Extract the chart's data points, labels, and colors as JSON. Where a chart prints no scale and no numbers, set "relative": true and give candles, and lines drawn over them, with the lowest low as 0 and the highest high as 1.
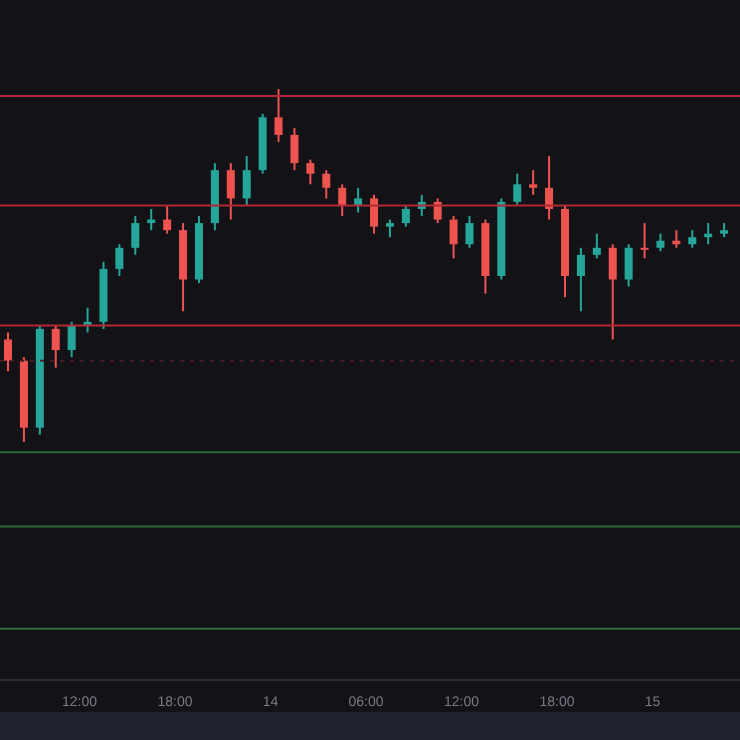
{
  "chart_data": {
    "type": "candlestick",
    "relative": true,
    "x": [
      "--01-13T07:30",
      "--01-13T08:30",
      "--01-13T09:30",
      "--01-13T10:30",
      "--01-13T11:30",
      "--01-13T12:30",
      "--01-13T13:30",
      "--01-13T14:30",
      "--01-13T15:30",
      "--01-13T16:30",
      "--01-13T17:30",
      "--01-13T18:30",
      "--01-13T19:30",
      "--01-13T20:30",
      "--01-13T21:30",
      "--01-13T22:30",
      "--01-13T23:30",
      "--01-14T00:30",
      "--01-14T01:30",
      "--01-14T02:30",
      "--01-14T03:30",
      "--01-14T04:30",
      "--01-14T05:30",
      "--01-14T06:30",
      "--01-14T07:30",
      "--01-14T08:30",
      "--01-14T09:30",
      "--01-14T10:30",
      "--01-14T11:30",
      "--01-14T12:30",
      "--01-14T13:30",
      "--01-14T14:30",
      "--01-14T15:30",
      "--01-14T16:30",
      "--01-14T17:30",
      "--01-14T18:30",
      "--01-14T19:30",
      "--01-14T20:30",
      "--01-14T21:30",
      "--01-14T22:30",
      "--01-14T23:30",
      "--01-15T00:30",
      "--01-15T01:30",
      "--01-15T02:30",
      "--01-15T03:30",
      "--01-15T04:30"
    ],
    "ohlc": [
      [
        0.29,
        0.31,
        0.2,
        0.23
      ],
      [
        0.23,
        0.24,
        0,
        0.04
      ],
      [
        0.04,
        0.33,
        0.02,
        0.32
      ],
      [
        0.32,
        0.33,
        0.21,
        0.26
      ],
      [
        0.26,
        0.34,
        0.24,
        0.33
      ],
      [
        0.33,
        0.38,
        0.31,
        0.34
      ],
      [
        0.34,
        0.51,
        0.32,
        0.49
      ],
      [
        0.49,
        0.56,
        0.47,
        0.55
      ],
      [
        0.55,
        0.64,
        0.53,
        0.62
      ],
      [
        0.62,
        0.66,
        0.6,
        0.63
      ],
      [
        0.63,
        0.67,
        0.59,
        0.6
      ],
      [
        0.6,
        0.62,
        0.37,
        0.46
      ],
      [
        0.46,
        0.64,
        0.45,
        0.62
      ],
      [
        0.62,
        0.79,
        0.6,
        0.77
      ],
      [
        0.77,
        0.79,
        0.63,
        0.69
      ],
      [
        0.69,
        0.81,
        0.67,
        0.77
      ],
      [
        0.77,
        0.93,
        0.76,
        0.92
      ],
      [
        0.92,
        1,
        0.85,
        0.87
      ],
      [
        0.87,
        0.89,
        0.77,
        0.79
      ],
      [
        0.79,
        0.8,
        0.73,
        0.76
      ],
      [
        0.76,
        0.77,
        0.69,
        0.72
      ],
      [
        0.72,
        0.73,
        0.64,
        0.67
      ],
      [
        0.67,
        0.72,
        0.65,
        0.69
      ],
      [
        0.69,
        0.7,
        0.59,
        0.61
      ],
      [
        0.61,
        0.63,
        0.58,
        0.62
      ],
      [
        0.62,
        0.67,
        0.61,
        0.66
      ],
      [
        0.66,
        0.7,
        0.64,
        0.68
      ],
      [
        0.68,
        0.69,
        0.62,
        0.63
      ],
      [
        0.63,
        0.64,
        0.52,
        0.56
      ],
      [
        0.56,
        0.64,
        0.55,
        0.62
      ],
      [
        0.62,
        0.63,
        0.42,
        0.47
      ],
      [
        0.47,
        0.69,
        0.46,
        0.68
      ],
      [
        0.68,
        0.76,
        0.67,
        0.73
      ],
      [
        0.73,
        0.77,
        0.7,
        0.72
      ],
      [
        0.72,
        0.81,
        0.63,
        0.66
      ],
      [
        0.66,
        0.67,
        0.41,
        0.47
      ],
      [
        0.47,
        0.55,
        0.37,
        0.53
      ],
      [
        0.53,
        0.59,
        0.52,
        0.55
      ],
      [
        0.55,
        0.56,
        0.29,
        0.46
      ],
      [
        0.46,
        0.56,
        0.44,
        0.55
      ],
      [
        0.55,
        0.62,
        0.52,
        0.55
      ],
      [
        0.55,
        0.59,
        0.54,
        0.57
      ],
      [
        0.57,
        0.6,
        0.55,
        0.56
      ],
      [
        0.56,
        0.6,
        0.55,
        0.58
      ],
      [
        0.58,
        0.62,
        0.56,
        0.59
      ],
      [
        0.59,
        0.62,
        0.58,
        0.6
      ]
    ],
    "colors": [
      "#ef5350",
      "#ef5350",
      "#26a69a",
      "#ef5350",
      "#26a69a",
      "#26a69a",
      "#26a69a",
      "#26a69a",
      "#26a69a",
      "#26a69a",
      "#ef5350",
      "#ef5350",
      "#26a69a",
      "#26a69a",
      "#ef5350",
      "#26a69a",
      "#26a69a",
      "#ef5350",
      "#ef5350",
      "#ef5350",
      "#ef5350",
      "#ef5350",
      "#26a69a",
      "#ef5350",
      "#26a69a",
      "#26a69a",
      "#26a69a",
      "#ef5350",
      "#ef5350",
      "#26a69a",
      "#ef5350",
      "#26a69a",
      "#26a69a",
      "#ef5350",
      "#ef5350",
      "#ef5350",
      "#26a69a",
      "#26a69a",
      "#ef5350",
      "#26a69a",
      "#ef5350",
      "#26a69a",
      "#ef5350",
      "#26a69a",
      "#26a69a",
      "#26a69a"
    ],
    "xlim": [
      "--01-13T07:00",
      "--01-15T05:30"
    ],
    "xticks": [
      {
        "value": "--01-13T12:00",
        "label": "12:00"
      },
      {
        "value": "--01-13T18:00",
        "label": "18:00"
      },
      {
        "value": "--01-14T00:00",
        "label": "14"
      },
      {
        "value": "--01-14T06:00",
        "label": "06:00"
      },
      {
        "value": "--01-14T12:00",
        "label": "12:00"
      },
      {
        "value": "--01-14T18:00",
        "label": "18:00"
      },
      {
        "value": "--01-15T00:00",
        "label": "15"
      }
    ],
    "ref_lines": [
      {
        "axis": "y",
        "value": 0.98,
        "color": "#b22833"
      },
      {
        "axis": "y",
        "value": 0.67,
        "color": "#b22833"
      },
      {
        "axis": "y",
        "value": 0.33,
        "color": "#b22833"
      },
      {
        "axis": "y",
        "value": 0.23,
        "color": "#4a1f24",
        "line_style": "dotted"
      },
      {
        "axis": "y",
        "value": -0.03,
        "color": "#2e6b3a"
      },
      {
        "axis": "y",
        "value": -0.24,
        "color": "#2e6b3a"
      },
      {
        "axis": "y",
        "value": -0.53,
        "color": "#2e6b3a"
      }
    ]
  }
}
